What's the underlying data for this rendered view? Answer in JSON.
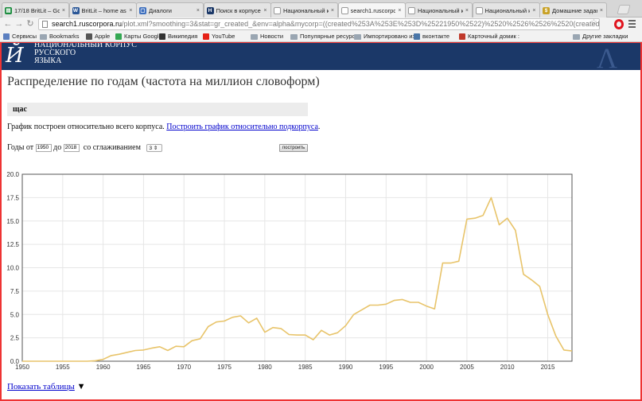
{
  "browser": {
    "tabs": [
      {
        "label": "17/18 BritLit – Goo",
        "color": "#1b8c3e",
        "glyph": "▤",
        "active": false
      },
      {
        "label": "BritLit – home ass",
        "color": "#2b5797",
        "glyph": "W",
        "active": false
      },
      {
        "label": "Диалоги",
        "color": "#3d6fbe",
        "glyph": "▢",
        "active": false
      },
      {
        "label": "Поиск в корпусе",
        "color": "#1b3868",
        "glyph": "Н",
        "active": false
      },
      {
        "label": "Национальный ко",
        "color": "#ffffff",
        "glyph": "",
        "active": false
      },
      {
        "label": "search1.ruscorpora",
        "color": "#ffffff",
        "glyph": "",
        "active": true
      },
      {
        "label": "Национальный ко",
        "color": "#ffffff",
        "glyph": "",
        "active": false
      },
      {
        "label": "Национальный ко",
        "color": "#ffffff",
        "glyph": "",
        "active": false
      },
      {
        "label": "Домашние задани",
        "color": "#c9a227",
        "glyph": "$",
        "active": false
      }
    ],
    "url_host": "search1.ruscorpora.ru",
    "url_rest": "/plot.xml?smoothing=3&stat=gr_created_&env=alpha&mycorp=((created%253A%253E%253D%25221950%2522)%2520%2526%2526%2520(created%253..."
  },
  "bookmarks": [
    {
      "label": "Сервисы",
      "icon": "grid-icon",
      "color": "#5b7fc0"
    },
    {
      "label": "Bookmarks",
      "icon": "folder-icon",
      "color": "#9aa6b2"
    },
    {
      "label": "Apple",
      "icon": "apple-icon",
      "color": "#555555"
    },
    {
      "label": "Карты Google",
      "icon": "map-icon",
      "color": "#34a853"
    },
    {
      "label": "Википедия",
      "icon": "wikipedia-icon",
      "color": "#333333"
    },
    {
      "label": "YouTube",
      "icon": "youtube-icon",
      "color": "#e62117"
    },
    {
      "label": "Новости",
      "icon": "folder-icon",
      "color": "#9aa6b2"
    },
    {
      "label": "Популярные ресурс",
      "icon": "folder-icon",
      "color": "#9aa6b2"
    },
    {
      "label": "Импортировано из",
      "icon": "folder-icon",
      "color": "#9aa6b2"
    },
    {
      "label": "вконтакте",
      "icon": "vk-icon",
      "color": "#4a76a8"
    },
    {
      "label": "Карточный домик :",
      "icon": "card-icon",
      "color": "#c0392b"
    },
    {
      "label": "Другие закладки",
      "icon": "folder-icon",
      "color": "#9aa6b2"
    }
  ],
  "site": {
    "logo_lines": [
      "НАЦИОНАЛЬНЫЙ КОРПУС",
      "РУССКОГО",
      "ЯЗЫКА"
    ]
  },
  "page": {
    "title": "Распределение по годам (частота на миллион словоформ)",
    "query": "щас",
    "note_text": "График построен относительно всего корпуса. ",
    "note_link": "Построить график относительно подкорпуса",
    "note_end": ".",
    "years_from_label": "Годы от",
    "year_from": "1950",
    "years_to_label": "до",
    "year_to": "2018",
    "smoothing_label": "со сглаживанием",
    "smoothing_value": "3",
    "build_button": "построить",
    "show_table_link": "Показать таблицы",
    "show_table_arrow": "▼"
  },
  "chart_data": {
    "type": "line",
    "title": "",
    "xlabel": "",
    "ylabel": "",
    "xlim": [
      1950,
      2018
    ],
    "ylim": [
      0,
      20
    ],
    "xticks": [
      1950,
      1955,
      1960,
      1965,
      1970,
      1975,
      1980,
      1985,
      1990,
      1995,
      2000,
      2005,
      2010,
      2015
    ],
    "yticks": [
      0.0,
      2.5,
      5.0,
      7.5,
      10.0,
      12.5,
      15.0,
      17.5,
      20.0
    ],
    "grid": true,
    "line_color": "#e8c46a",
    "series": [
      {
        "x": [
          1950,
          1951,
          1952,
          1953,
          1954,
          1955,
          1956,
          1957,
          1958,
          1959,
          1960,
          1961,
          1962,
          1963,
          1964,
          1965,
          1966,
          1967,
          1968,
          1969,
          1970,
          1971,
          1972,
          1973,
          1974,
          1975,
          1976,
          1977,
          1978,
          1979,
          1980,
          1981,
          1982,
          1983,
          1984,
          1985,
          1986,
          1987,
          1988,
          1989,
          1990,
          1991,
          1992,
          1993,
          1994,
          1995,
          1996,
          1997,
          1998,
          1999,
          2000,
          2001,
          2002,
          2003,
          2004,
          2005,
          2006,
          2007,
          2008,
          2009,
          2010,
          2011,
          2012,
          2013,
          2014,
          2015,
          2016,
          2017,
          2018
        ],
        "values": [
          0.0,
          0.0,
          0.0,
          0.0,
          0.0,
          0.0,
          0.0,
          0.0,
          0.0,
          0.05,
          0.2,
          0.6,
          0.75,
          0.95,
          1.15,
          1.2,
          1.4,
          1.55,
          1.15,
          1.6,
          1.55,
          2.2,
          2.4,
          3.7,
          4.2,
          4.3,
          4.7,
          4.85,
          4.1,
          4.6,
          3.1,
          3.6,
          3.5,
          2.85,
          2.8,
          2.8,
          2.3,
          3.3,
          2.8,
          3.05,
          3.8,
          5.0,
          5.5,
          6.0,
          6.0,
          6.1,
          6.5,
          6.6,
          6.3,
          6.3,
          5.9,
          5.6,
          10.5,
          10.5,
          10.7,
          15.2,
          15.3,
          15.6,
          17.5,
          14.6,
          15.3,
          14.0,
          9.3,
          8.7,
          8.0,
          5.0,
          2.7,
          1.2,
          1.1
        ]
      }
    ]
  }
}
